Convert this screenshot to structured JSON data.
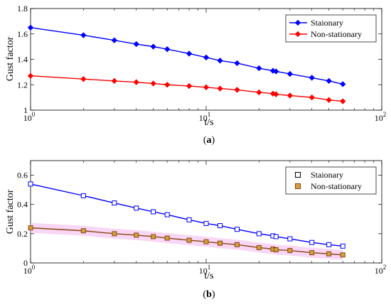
{
  "chart_data": [
    {
      "type": "line",
      "panel_caption": "(a)",
      "caption_bold": "a",
      "xlabel": "t/s",
      "ylabel": "Gust factor",
      "x_scale": "log",
      "xlim": [
        1,
        100
      ],
      "ylim": [
        1,
        1.8
      ],
      "x_ticks": [
        1,
        10,
        100
      ],
      "x_tick_labels": [
        {
          "base": "10",
          "exp": "0"
        },
        {
          "base": "10",
          "exp": "1"
        },
        {
          "base": "10",
          "exp": "2"
        }
      ],
      "y_ticks": [
        1,
        1.2,
        1.4,
        1.6,
        1.8
      ],
      "y_tick_labels": [
        "1",
        "1.2",
        "1.4",
        "1.6",
        "1.8"
      ],
      "grid": false,
      "legend_position": "top-right",
      "x": [
        1,
        2,
        3,
        4,
        5,
        6,
        8,
        10,
        12,
        15,
        20,
        24,
        25,
        30,
        40,
        50,
        60
      ],
      "series": [
        {
          "name": "Staionary",
          "color": "#0000ff",
          "marker": "diamond",
          "marker_fill": "#0000ff",
          "values": [
            1.65,
            1.59,
            1.55,
            1.52,
            1.5,
            1.48,
            1.445,
            1.415,
            1.39,
            1.37,
            1.33,
            1.31,
            1.305,
            1.285,
            1.255,
            1.23,
            1.205
          ]
        },
        {
          "name": "Non-stationary",
          "color": "#ff0000",
          "marker": "diamond",
          "marker_fill": "#ff0000",
          "values": [
            1.27,
            1.245,
            1.23,
            1.22,
            1.21,
            1.2,
            1.19,
            1.18,
            1.17,
            1.16,
            1.14,
            1.13,
            1.125,
            1.115,
            1.1,
            1.08,
            1.07
          ]
        }
      ]
    },
    {
      "type": "line",
      "panel_caption": "(b)",
      "caption_bold": "b",
      "xlabel": "t/s",
      "ylabel": "Gust factor",
      "x_scale": "log",
      "xlim": [
        1,
        100
      ],
      "ylim": [
        0,
        0.7
      ],
      "x_ticks": [
        1,
        10,
        100
      ],
      "x_tick_labels": [
        {
          "base": "10",
          "exp": "0"
        },
        {
          "base": "10",
          "exp": "1"
        },
        {
          "base": "10",
          "exp": "2"
        }
      ],
      "y_ticks": [
        0,
        0.2,
        0.4,
        0.6
      ],
      "y_tick_labels": [
        "0",
        "0.2",
        "0.4",
        "0.6"
      ],
      "grid": false,
      "legend_position": "top-right",
      "x": [
        1,
        2,
        3,
        4,
        5,
        6,
        8,
        10,
        12,
        15,
        20,
        24,
        25,
        30,
        40,
        50,
        60
      ],
      "series": [
        {
          "name": "Staionary",
          "color": "#0000ff",
          "marker": "square",
          "marker_fill": "none",
          "legend_marker_color": "#000000",
          "values": [
            0.54,
            0.46,
            0.41,
            0.375,
            0.35,
            0.33,
            0.295,
            0.27,
            0.255,
            0.23,
            0.2,
            0.185,
            0.18,
            0.165,
            0.14,
            0.125,
            0.115
          ]
        },
        {
          "name": "Non-stationary",
          "color": "#8b4513",
          "marker": "square",
          "marker_fill": "#d2a040",
          "legend_marker_color": "#8b4513",
          "band_color": "#f4c0f0",
          "values": [
            0.24,
            0.22,
            0.2,
            0.19,
            0.18,
            0.17,
            0.155,
            0.145,
            0.135,
            0.125,
            0.105,
            0.095,
            0.09,
            0.085,
            0.07,
            0.062,
            0.055
          ]
        }
      ]
    }
  ]
}
